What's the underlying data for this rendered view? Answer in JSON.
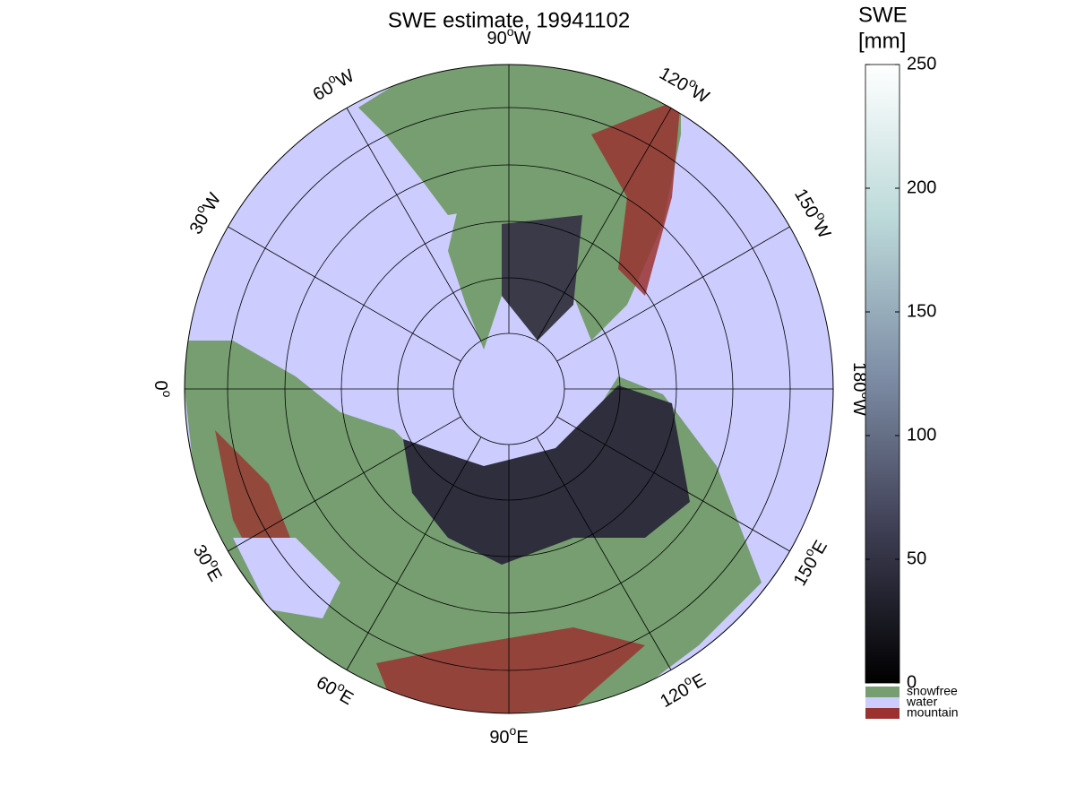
{
  "map": {
    "title": "SWE estimate, 19941102",
    "meridians": [
      {
        "lon": -90,
        "label": "90",
        "unit": "o",
        "hemi": "W"
      },
      {
        "lon": -60,
        "label": "60",
        "unit": "o",
        "hemi": "W"
      },
      {
        "lon": -30,
        "label": "30",
        "unit": "o",
        "hemi": "W"
      },
      {
        "lon": 0,
        "label": "0",
        "unit": "o",
        "hemi": ""
      },
      {
        "lon": 30,
        "label": "30",
        "unit": "o",
        "hemi": "E"
      },
      {
        "lon": 60,
        "label": "60",
        "unit": "o",
        "hemi": "E"
      },
      {
        "lon": 90,
        "label": "90",
        "unit": "o",
        "hemi": "E"
      },
      {
        "lon": 120,
        "label": "120",
        "unit": "o",
        "hemi": "E"
      },
      {
        "lon": 150,
        "label": "150",
        "unit": "o",
        "hemi": "E"
      },
      {
        "lon": 180,
        "label": "180",
        "unit": "o",
        "hemi": "W"
      },
      {
        "lon": -150,
        "label": "150",
        "unit": "o",
        "hemi": "W"
      },
      {
        "lon": -120,
        "label": "120",
        "unit": "o",
        "hemi": "W"
      }
    ],
    "colorbar": {
      "title": [
        "SWE",
        "[mm]"
      ],
      "lim": [
        0,
        250
      ],
      "ticks": [
        0,
        50,
        100,
        150,
        200,
        250
      ],
      "colors": [
        "#000000",
        "#3f3f55",
        "#7e8ea6",
        "#bcd9d9",
        "#ffffff"
      ]
    },
    "legend": [
      {
        "name": "snowfree",
        "color": "#769e70"
      },
      {
        "name": "water",
        "color": "#ccccff"
      },
      {
        "name": "mountain",
        "color": "#9a3330"
      }
    ]
  }
}
